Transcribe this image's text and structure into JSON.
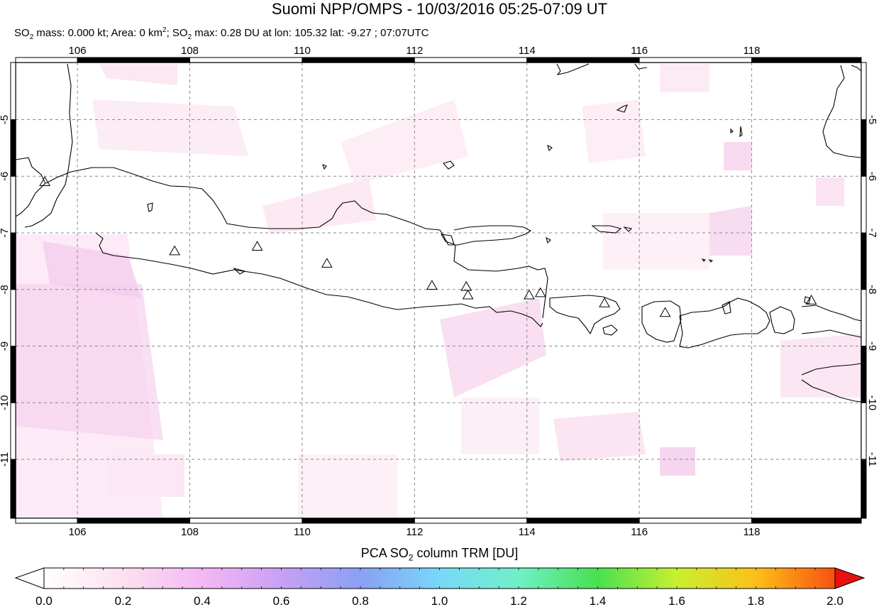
{
  "title": "Suomi NPP/OMPS - 10/03/2016 05:25-07:09 UT",
  "subtitle": {
    "p1": "SO",
    "s1": "2",
    "p2": " mass: 0.000 kt; Area: 0 km",
    "s2": "2",
    "p3": "; SO",
    "s3": "2",
    "p4": " max: 0.28 DU at lon: 105.32 lat: -9.27 ; 07:07UTC"
  },
  "map": {
    "lon_range": [
      104.9,
      119.95
    ],
    "lat_range": [
      -12.04,
      -3.99
    ],
    "lon_ticks": [
      106,
      108,
      110,
      112,
      114,
      116,
      118
    ],
    "lon_labels": [
      "106",
      "108",
      "110",
      "112",
      "114",
      "116",
      "118"
    ],
    "lat_ticks": [
      -5,
      -6,
      -7,
      -8,
      -9,
      -10,
      -11
    ],
    "lat_labels": [
      "-5",
      "-6",
      "-7",
      "-8",
      "-9",
      "-10",
      "-11"
    ],
    "grid": "dashed",
    "volcano_marker": "triangle-icon",
    "volcanoes": [
      {
        "lon": 105.42,
        "lat": -6.1
      },
      {
        "lon": 107.73,
        "lat": -7.32
      },
      {
        "lon": 109.2,
        "lat": -7.24
      },
      {
        "lon": 110.44,
        "lat": -7.54
      },
      {
        "lon": 112.31,
        "lat": -7.93
      },
      {
        "lon": 112.92,
        "lat": -7.95
      },
      {
        "lon": 112.95,
        "lat": -8.1
      },
      {
        "lon": 114.04,
        "lat": -8.1
      },
      {
        "lon": 114.24,
        "lat": -8.06
      },
      {
        "lon": 115.38,
        "lat": -8.24
      },
      {
        "lon": 116.46,
        "lat": -8.41
      },
      {
        "lon": 119.06,
        "lat": -8.19
      }
    ]
  },
  "colorbar": {
    "title_main": "PCA SO",
    "title_sub": "2",
    "title_rest": " column TRM [DU]",
    "min": 0.0,
    "max": 2.0,
    "tick_labels": [
      "0.0",
      "0.2",
      "0.4",
      "0.6",
      "0.8",
      "1.0",
      "1.2",
      "1.4",
      "1.6",
      "1.8",
      "2.0"
    ],
    "colors": [
      "#ffffff",
      "#fde0f0",
      "#f4b8f4",
      "#c8a0f4",
      "#8aa0f4",
      "#78d8f8",
      "#70f0c8",
      "#48e050",
      "#c8f030",
      "#fcc018",
      "#f85010",
      "#e81010"
    ]
  }
}
